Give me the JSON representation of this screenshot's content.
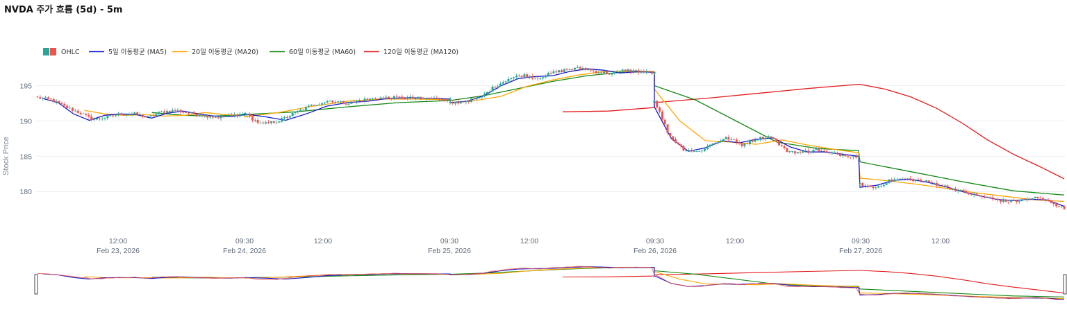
{
  "title": "NVDA 주가 흐름 (5d) - 5m",
  "chart_data": {
    "type": "candlestick",
    "ylabel": "Stock Price",
    "ylim": [
      175.5,
      198.5
    ],
    "y_ticks": [
      180,
      185,
      190,
      195
    ],
    "x_tick_labels": [
      {
        "label": "12:00",
        "sub": "Feb 23, 2026"
      },
      {
        "label": "09:30",
        "sub": "Feb 24, 2026"
      },
      {
        "label": "12:00",
        "sub": ""
      },
      {
        "label": "09:30",
        "sub": "Feb 25, 2026"
      },
      {
        "label": "12:00",
        "sub": ""
      },
      {
        "label": "09:30",
        "sub": "Feb 26, 2026"
      },
      {
        "label": "12:00",
        "sub": ""
      },
      {
        "label": "09:30",
        "sub": "Feb 27, 2026"
      },
      {
        "label": "12:00",
        "sub": ""
      }
    ],
    "colors": {
      "up": "#26a69a",
      "down": "#ef5350",
      "ma5": "#1616c8",
      "ma20": "#ffa500",
      "ma60": "#118811",
      "ma120": "#e31a1a"
    },
    "legend": [
      {
        "name": "OHLC",
        "key": "ohlc"
      },
      {
        "name": "5일 이동평균 (MA5)",
        "key": "ma5"
      },
      {
        "name": "20일 이동평균 (MA20)",
        "key": "ma20"
      },
      {
        "name": "60일 이동평균 (MA60)",
        "key": "ma60"
      },
      {
        "name": "120일 이동평균 (MA120)",
        "key": "ma120"
      }
    ],
    "days": [
      "Feb 23, 2026",
      "Feb 24, 2026",
      "Feb 25, 2026",
      "Feb 26, 2026",
      "Feb 27, 2026"
    ],
    "close_anchors": [
      [
        193.3,
        193.0,
        192.0,
        191.2,
        190.2,
        190.5,
        191.0,
        191.0,
        190.5,
        191.3,
        191.5,
        191.1,
        190.8,
        190.5,
        190.7,
        191.1
      ],
      [
        191.0,
        189.5,
        190.0,
        191.2,
        192.3,
        192.9,
        192.5,
        193.0,
        193.3,
        193.3,
        193.2,
        193.2,
        193.0
      ],
      [
        192.5,
        192.8,
        193.2,
        194.8,
        196.0,
        196.5,
        196.1,
        196.8,
        197.3,
        197.5,
        197.0,
        196.7,
        197.2,
        197.0,
        196.8
      ],
      [
        193.0,
        188.0,
        186.0,
        185.6,
        186.8,
        187.6,
        186.6,
        187.5,
        187.8,
        185.8,
        185.5,
        186.0,
        185.4,
        185.2,
        184.9
      ],
      [
        181.0,
        180.5,
        181.5,
        181.8,
        181.6,
        181.2,
        180.6,
        180.0,
        179.4,
        179.0,
        178.6,
        178.7,
        179.1,
        178.6,
        177.5
      ]
    ],
    "ma5": [
      [
        193.2,
        192.6,
        191.0,
        190.1,
        190.8,
        191.0,
        190.9,
        190.4,
        191.1,
        191.4,
        191.0,
        190.7,
        190.6,
        190.9
      ],
      [
        191.0,
        190.6,
        190.1,
        191.0,
        192.1,
        192.6,
        192.8,
        193.2,
        193.3,
        193.2,
        193.1
      ],
      [
        192.6,
        192.8,
        193.6,
        195.0,
        196.0,
        196.3,
        196.4,
        197.0,
        197.4,
        197.2,
        196.8,
        197.0,
        196.9
      ],
      [
        192.0,
        187.5,
        185.7,
        186.2,
        187.2,
        186.9,
        187.4,
        187.6,
        186.3,
        185.6,
        185.6,
        185.3,
        185.0
      ],
      [
        180.6,
        180.9,
        181.6,
        181.7,
        181.3,
        180.7,
        180.0,
        179.4,
        178.9,
        178.7,
        178.9,
        178.8,
        177.9
      ]
    ],
    "ma20": [
      [
        191.5,
        191.0,
        190.8,
        190.9,
        190.7,
        190.8,
        191.2,
        190.9,
        190.8
      ],
      [
        190.6,
        191.2,
        192.1,
        192.8,
        193.1,
        193.1,
        193.0
      ],
      [
        192.6,
        192.9,
        193.5,
        194.9,
        195.8,
        196.5,
        197.0,
        197.1,
        197.0
      ],
      [
        194.5,
        190.0,
        187.2,
        187.0,
        186.7,
        187.3,
        186.6,
        186.0,
        185.5
      ],
      [
        181.9,
        181.5,
        181.0,
        180.4,
        179.8,
        179.3,
        178.8,
        178.6
      ]
    ],
    "ma60": [
      [
        191.2,
        190.8,
        190.7,
        190.9
      ],
      [
        190.9,
        191.3,
        192.0,
        192.6,
        192.9
      ],
      [
        192.9,
        193.6,
        194.6,
        195.6,
        196.4,
        196.9,
        197.0
      ],
      [
        195.0,
        193.0,
        190.0,
        187.0,
        186.1,
        185.8
      ],
      [
        184.2,
        182.8,
        181.4,
        180.1,
        179.5
      ]
    ],
    "ma120": [
      [
        191.3,
        191.4,
        191.9
      ],
      [
        192.6,
        193.2,
        193.9,
        194.6,
        195.2
      ],
      [
        195.2,
        194.5,
        193.4,
        191.8,
        189.7,
        187.3,
        185.3,
        183.6,
        181.8
      ]
    ]
  }
}
